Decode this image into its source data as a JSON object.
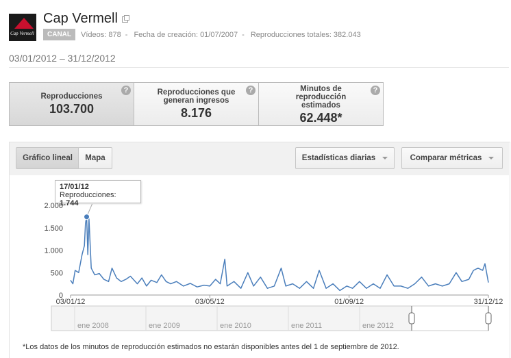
{
  "channel": {
    "logo_text": "Cap Vermell",
    "name": "Cap Vermell",
    "badge": "CANAL",
    "stats": [
      "Vídeos: 878",
      "Fecha de creación: 01/07/2007",
      "Reproducciones totales: 382.043"
    ],
    "separator": "-"
  },
  "date_range": "03/01/2012 – 31/12/2012",
  "metrics": [
    {
      "label": "Reproducciones",
      "value": "103.700",
      "help": "?"
    },
    {
      "label": "Reproducciones que generan ingresos",
      "value": "8.176",
      "help": "?"
    },
    {
      "label": "Minutos de reproducción estimados",
      "value": "62.448*",
      "help": "?"
    }
  ],
  "toolbar": {
    "tabs": [
      "Gráfico lineal",
      "Mapa"
    ],
    "dropdowns": [
      "Estadísticas diarias",
      "Comparar métricas"
    ]
  },
  "tooltip": {
    "date": "17/01/12",
    "label": "Reproducciones:",
    "value": "1.744"
  },
  "chart_data": {
    "type": "line",
    "color": "#4a7ebb",
    "grid": false,
    "x": [
      "2012-01-03",
      "2012-01-05",
      "2012-01-07",
      "2012-01-10",
      "2012-01-13",
      "2012-01-15",
      "2012-01-16",
      "2012-01-17",
      "2012-01-18",
      "2012-01-19",
      "2012-01-21",
      "2012-01-24",
      "2012-01-28",
      "2012-02-01",
      "2012-02-05",
      "2012-02-08",
      "2012-02-12",
      "2012-02-16",
      "2012-02-20",
      "2012-02-24",
      "2012-03-01",
      "2012-03-05",
      "2012-03-09",
      "2012-03-13",
      "2012-03-18",
      "2012-03-22",
      "2012-03-26",
      "2012-03-30",
      "2012-04-04",
      "2012-04-10",
      "2012-04-16",
      "2012-04-22",
      "2012-04-28",
      "2012-05-03",
      "2012-05-08",
      "2012-05-12",
      "2012-05-16",
      "2012-05-18",
      "2012-05-24",
      "2012-05-30",
      "2012-06-05",
      "2012-06-10",
      "2012-06-16",
      "2012-06-22",
      "2012-06-28",
      "2012-07-04",
      "2012-07-08",
      "2012-07-14",
      "2012-07-20",
      "2012-07-26",
      "2012-08-01",
      "2012-08-06",
      "2012-08-12",
      "2012-08-18",
      "2012-08-24",
      "2012-08-30",
      "2012-09-04",
      "2012-09-10",
      "2012-09-16",
      "2012-09-22",
      "2012-09-28",
      "2012-10-04",
      "2012-10-10",
      "2012-10-16",
      "2012-10-22",
      "2012-10-28",
      "2012-11-03",
      "2012-11-09",
      "2012-11-15",
      "2012-11-21",
      "2012-11-27",
      "2012-12-03",
      "2012-12-08",
      "2012-12-14",
      "2012-12-18",
      "2012-12-22",
      "2012-12-26",
      "2012-12-28",
      "2012-12-31"
    ],
    "series": [
      {
        "name": "Reproducciones",
        "color": "#4a7ebb",
        "values": [
          330,
          250,
          550,
          500,
          900,
          1100,
          1600,
          1744,
          900,
          1700,
          600,
          450,
          480,
          350,
          300,
          600,
          380,
          300,
          350,
          420,
          250,
          380,
          200,
          330,
          280,
          450,
          300,
          250,
          300,
          200,
          260,
          180,
          220,
          200,
          350,
          250,
          800,
          200,
          300,
          150,
          500,
          200,
          400,
          150,
          200,
          600,
          200,
          250,
          150,
          300,
          150,
          550,
          150,
          250,
          100,
          200,
          150,
          300,
          150,
          250,
          150,
          450,
          200,
          200,
          150,
          250,
          400,
          200,
          250,
          200,
          250,
          500,
          300,
          350,
          550,
          600,
          550,
          700,
          280
        ]
      }
    ],
    "xlim": [
      "2012-01-03",
      "2012-12-31"
    ],
    "xticks": [
      {
        "value": "2012-01-03",
        "label": "03/01/12"
      },
      {
        "value": "2012-05-03",
        "label": "03/05/12"
      },
      {
        "value": "2012-09-01",
        "label": "01/09/12"
      },
      {
        "value": "2012-12-31",
        "label": "31/12/12"
      }
    ],
    "ylim": [
      0,
      2000
    ],
    "yticks": [
      0,
      {
        "value": 500,
        "label": "500"
      },
      {
        "value": 1000,
        "label": "1.000"
      },
      {
        "value": 1500,
        "label": "1.500"
      },
      {
        "value": 2000,
        "label": "2.000"
      }
    ]
  },
  "navigator": {
    "labels": [
      "ene 2008",
      "ene 2009",
      "ene 2010",
      "ene 2011",
      "ene 2012"
    ]
  },
  "footnote": "*Los datos de los minutos de reproducción estimados no estarán disponibles antes del 1 de septiembre de 2012."
}
